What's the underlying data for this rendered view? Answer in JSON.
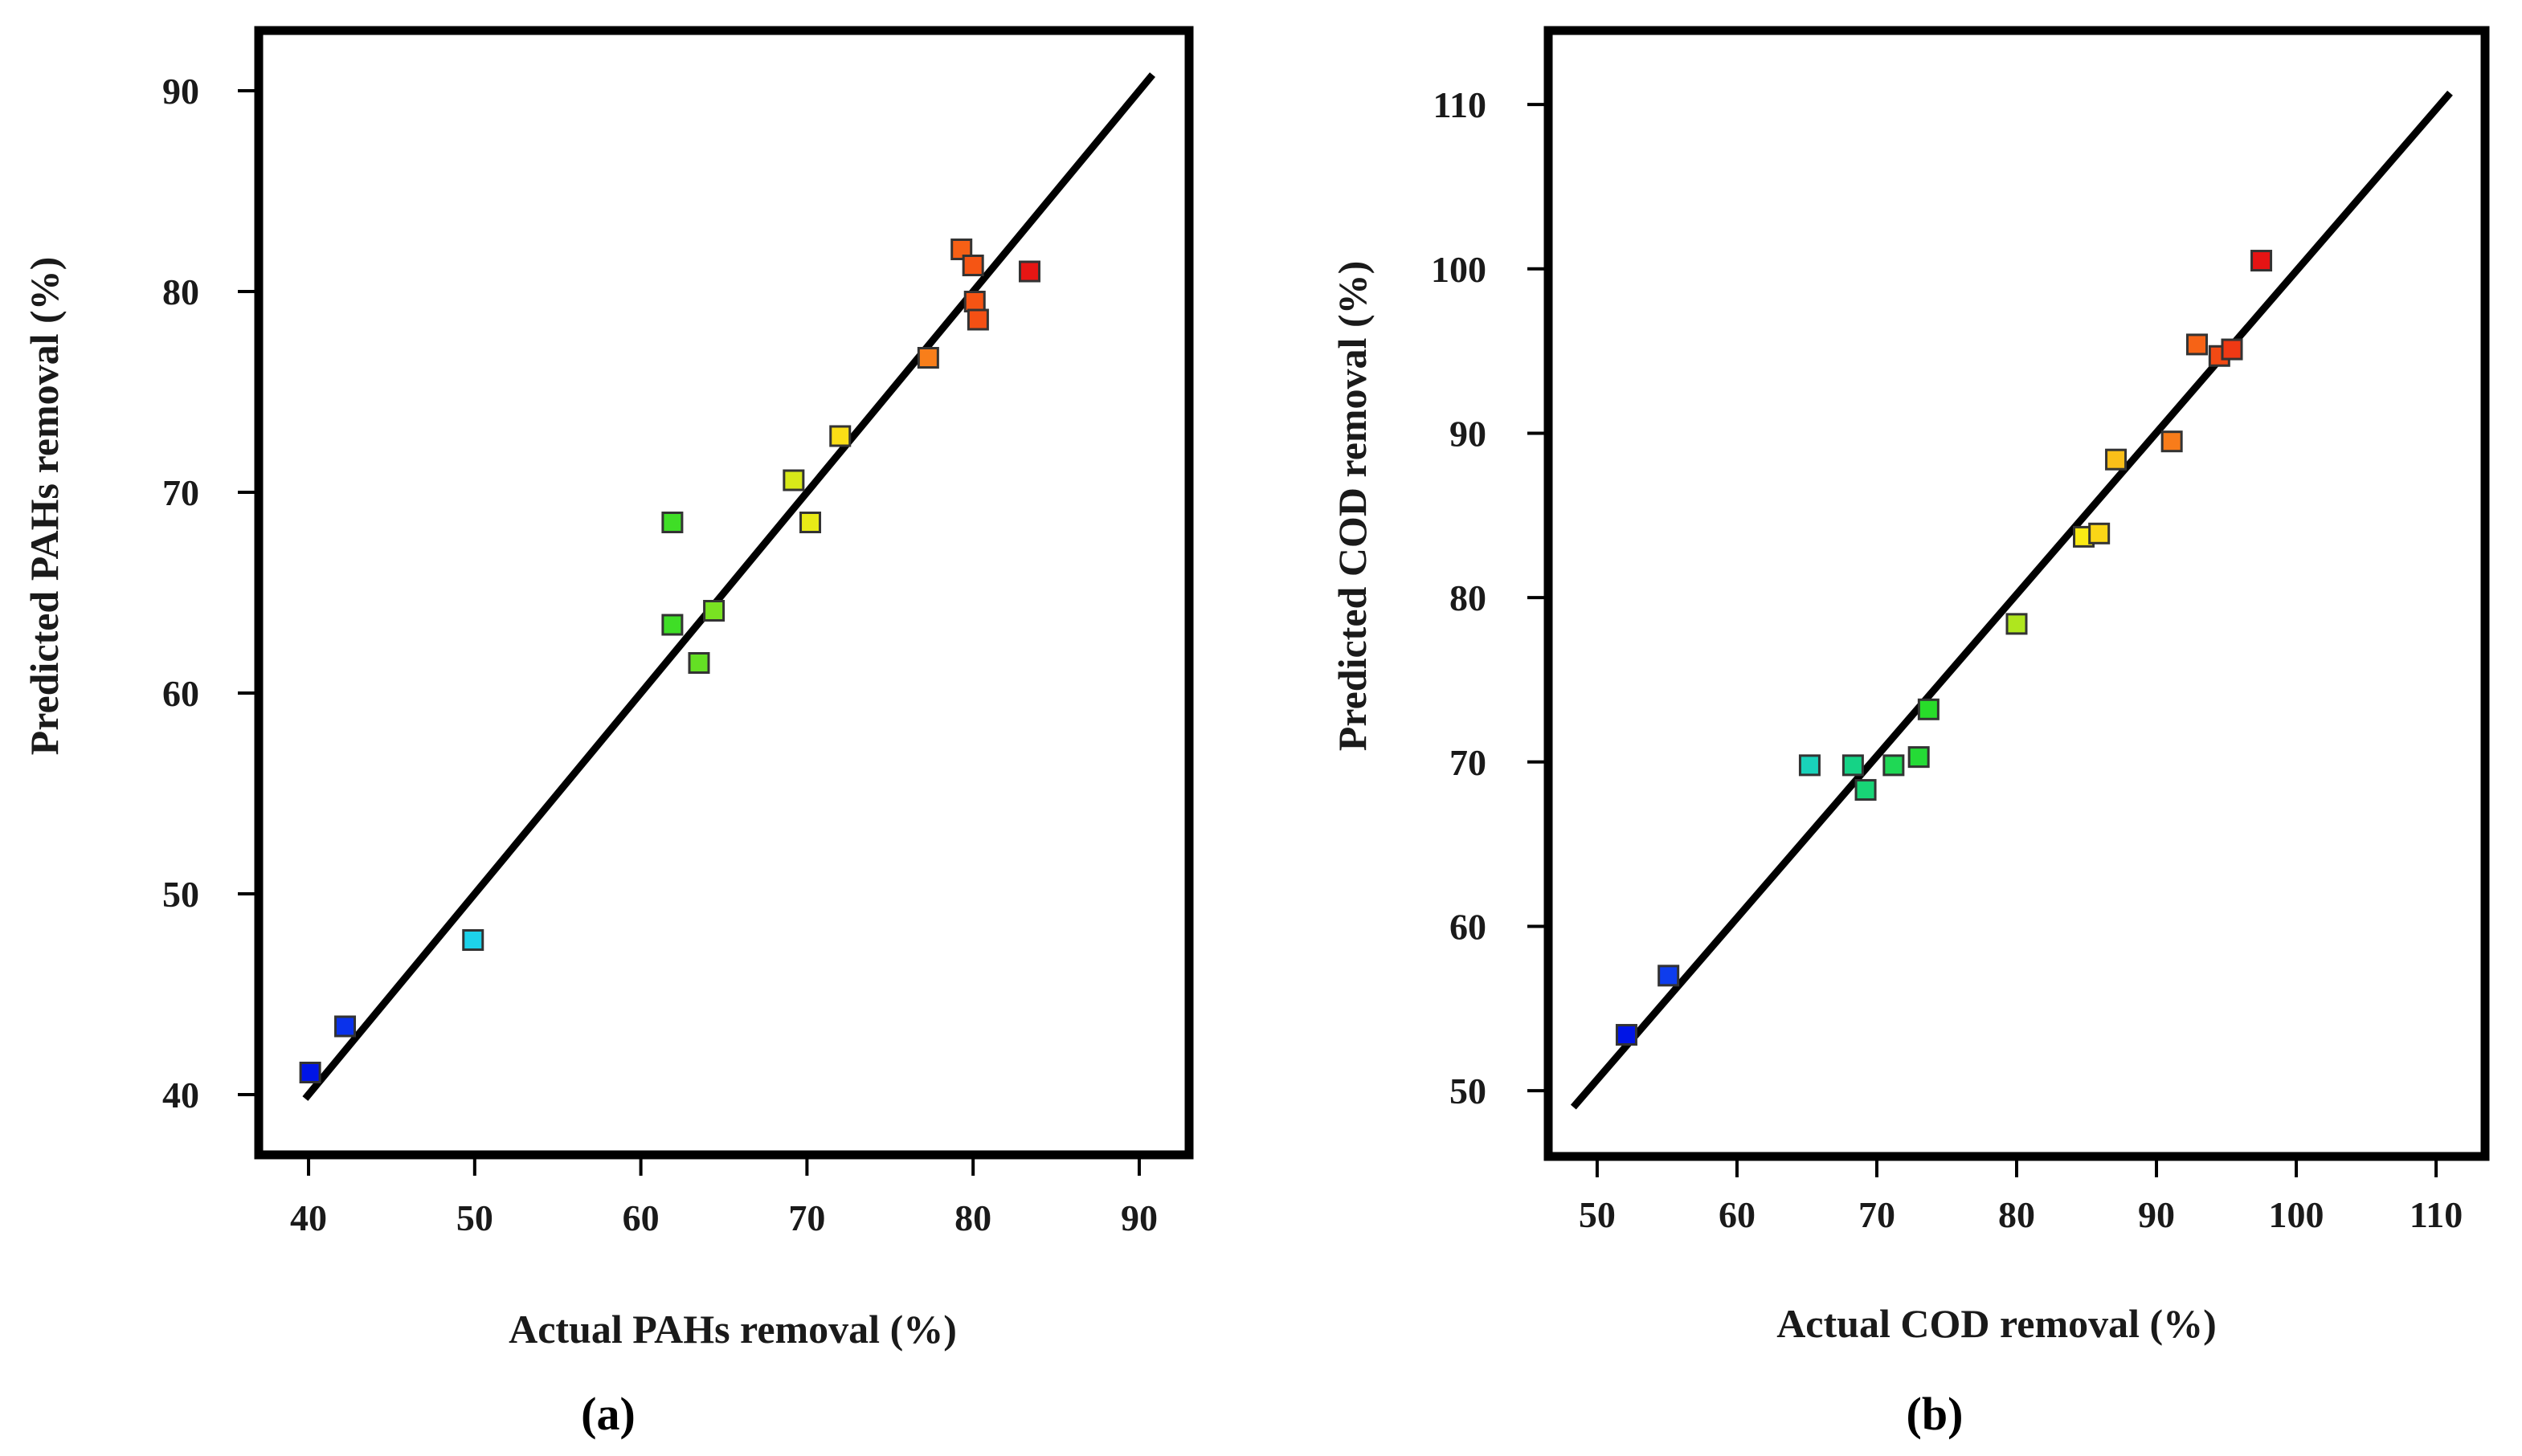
{
  "figure": {
    "panel_a_label": "(a)",
    "panel_b_label": "(b)"
  },
  "chart_data": [
    {
      "type": "scatter",
      "panel": "(a)",
      "title": "",
      "xlabel": "Actual PAHs removal  (%)",
      "ylabel": "Predicted PAHs removal  (%)",
      "xlim": [
        37,
        93
      ],
      "ylim": [
        37,
        93
      ],
      "xticks": [
        40,
        50,
        60,
        70,
        80,
        90
      ],
      "yticks": [
        40,
        50,
        60,
        70,
        80,
        90
      ],
      "fit_line": [
        [
          39.8,
          39.8
        ],
        [
          90.8,
          90.8
        ]
      ],
      "color_range": [
        40,
        83.5
      ],
      "points": [
        {
          "x": 40.1,
          "y": 41.1
        },
        {
          "x": 42.2,
          "y": 43.4
        },
        {
          "x": 49.9,
          "y": 47.7
        },
        {
          "x": 61.9,
          "y": 63.4
        },
        {
          "x": 61.9,
          "y": 68.5
        },
        {
          "x": 63.5,
          "y": 61.5
        },
        {
          "x": 64.4,
          "y": 64.1
        },
        {
          "x": 69.2,
          "y": 70.6
        },
        {
          "x": 70.2,
          "y": 68.5
        },
        {
          "x": 72.0,
          "y": 72.8
        },
        {
          "x": 77.3,
          "y": 76.7
        },
        {
          "x": 79.3,
          "y": 82.1
        },
        {
          "x": 80.0,
          "y": 81.3
        },
        {
          "x": 80.1,
          "y": 79.5
        },
        {
          "x": 80.3,
          "y": 78.6
        },
        {
          "x": 83.4,
          "y": 81.0
        }
      ]
    },
    {
      "type": "scatter",
      "panel": "(b)",
      "title": "",
      "xlabel": "Actual COD removal  (%)",
      "ylabel": "Predicted COD removal  (%)",
      "xlim": [
        46.5,
        113.5
      ],
      "ylim": [
        46,
        114.5
      ],
      "xticks": [
        50,
        60,
        70,
        80,
        90,
        100,
        110
      ],
      "yticks": [
        50,
        60,
        70,
        80,
        90,
        100,
        110
      ],
      "fit_line": [
        [
          48.3,
          49.0
        ],
        [
          111.0,
          110.7
        ]
      ],
      "color_range": [
        52,
        97.5
      ],
      "points": [
        {
          "x": 52.1,
          "y": 53.4
        },
        {
          "x": 55.1,
          "y": 57.0
        },
        {
          "x": 65.2,
          "y": 69.8
        },
        {
          "x": 68.3,
          "y": 69.8
        },
        {
          "x": 69.2,
          "y": 68.3
        },
        {
          "x": 71.2,
          "y": 69.8
        },
        {
          "x": 73.0,
          "y": 70.3
        },
        {
          "x": 73.7,
          "y": 73.2
        },
        {
          "x": 80.0,
          "y": 78.4
        },
        {
          "x": 84.8,
          "y": 83.7
        },
        {
          "x": 85.9,
          "y": 83.9
        },
        {
          "x": 87.1,
          "y": 88.4
        },
        {
          "x": 91.1,
          "y": 89.5
        },
        {
          "x": 92.9,
          "y": 95.4
        },
        {
          "x": 94.5,
          "y": 94.7
        },
        {
          "x": 95.4,
          "y": 95.1
        },
        {
          "x": 97.5,
          "y": 100.5
        }
      ]
    }
  ]
}
